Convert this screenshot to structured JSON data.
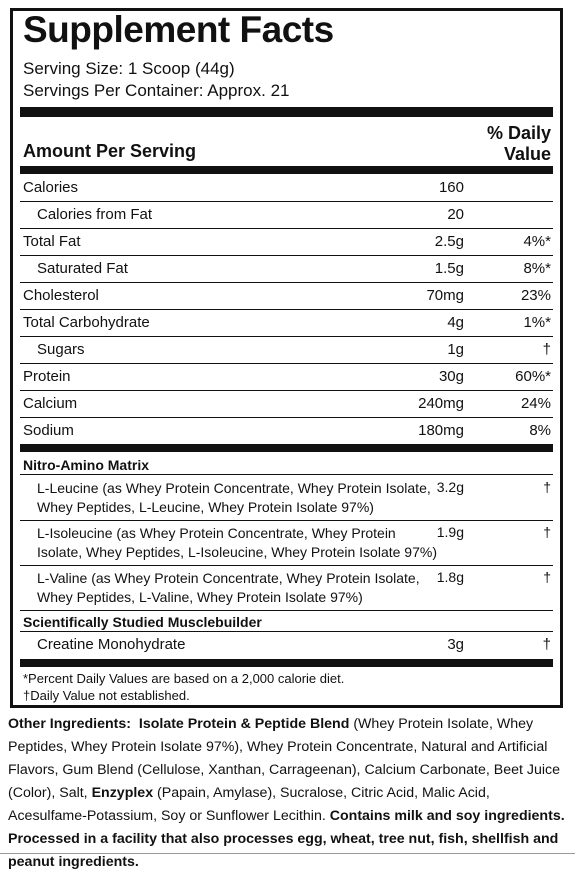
{
  "title": "Supplement Facts",
  "serving_size": "Serving Size: 1 Scoop (44g)",
  "servings_per_container": "Servings Per Container: Approx. 21",
  "header": {
    "amount_per_serving": "Amount Per Serving",
    "daily_value_line1": "% Daily",
    "daily_value_line2": "Value"
  },
  "nutrients": [
    {
      "label": "Calories",
      "amount": "160",
      "dv": ""
    },
    {
      "label": "Calories from Fat",
      "amount": "20",
      "dv": ""
    },
    {
      "label": "Total Fat",
      "amount": "2.5g",
      "dv": "4%*"
    },
    {
      "label": "Saturated Fat",
      "amount": "1.5g",
      "dv": "8%*"
    },
    {
      "label": "Cholesterol",
      "amount": "70mg",
      "dv": "23%"
    },
    {
      "label": "Total Carbohydrate",
      "amount": "4g",
      "dv": "1%*"
    },
    {
      "label": "Sugars",
      "amount": "1g",
      "dv": "†"
    },
    {
      "label": "Protein",
      "amount": "30g",
      "dv": "60%*"
    },
    {
      "label": "Calcium",
      "amount": "240mg",
      "dv": "24%"
    },
    {
      "label": "Sodium",
      "amount": "180mg",
      "dv": "8%"
    }
  ],
  "matrix": {
    "title": "Nitro-Amino Matrix",
    "items": [
      {
        "label": "L-Leucine (as Whey Protein Concentrate, Whey Protein Isolate, Whey Peptides, L-Leucine, Whey Protein Isolate 97%)",
        "amount": "3.2g",
        "dv": "†"
      },
      {
        "label": "L-Isoleucine  (as  Whey Protein Concentrate, Whey Protein Isolate, Whey Peptides, L-Isoleucine, Whey Protein Isolate 97%)",
        "amount": "1.9g",
        "dv": "†"
      },
      {
        "label": "L-Valine (as  Whey Protein Concentrate, Whey Protein Isolate, Whey Peptides, L-Valine, Whey Protein Isolate 97%)",
        "amount": "1.8g",
        "dv": "†"
      }
    ]
  },
  "musclebuilder": {
    "title": "Scientifically Studied Musclebuilder",
    "item": {
      "label": "Creatine Monohydrate",
      "amount": "3g",
      "dv": "†"
    }
  },
  "footnotes": [
    "*Percent Daily Values are based on a 2,000 calorie diet.",
    "†Daily Value not established."
  ],
  "ingredients": {
    "label": "Other Ingredients:",
    "blend_name": "Isolate Protein & Peptide Blend",
    "text1": " (Whey Protein Isolate, Whey Peptides, Whey Protein Isolate 97%), Whey Protein Concentrate, Natural and Artificial Flavors, Gum Blend (Cellulose, Xanthan, Carrageenan), Calcium Carbonate, Beet Juice (Color), Salt, ",
    "enzyme_name": "Enzyplex",
    "text2": " (Papain, Amylase), Sucralose, Citric Acid, Malic Acid, Acesulfame-Potassium, Soy or Sunflower Lecithin. ",
    "allergen": "Contains milk and soy ingredients. Processed in a facility that also processes egg, wheat, tree nut, fish, shellfish and peanut ingredients."
  }
}
